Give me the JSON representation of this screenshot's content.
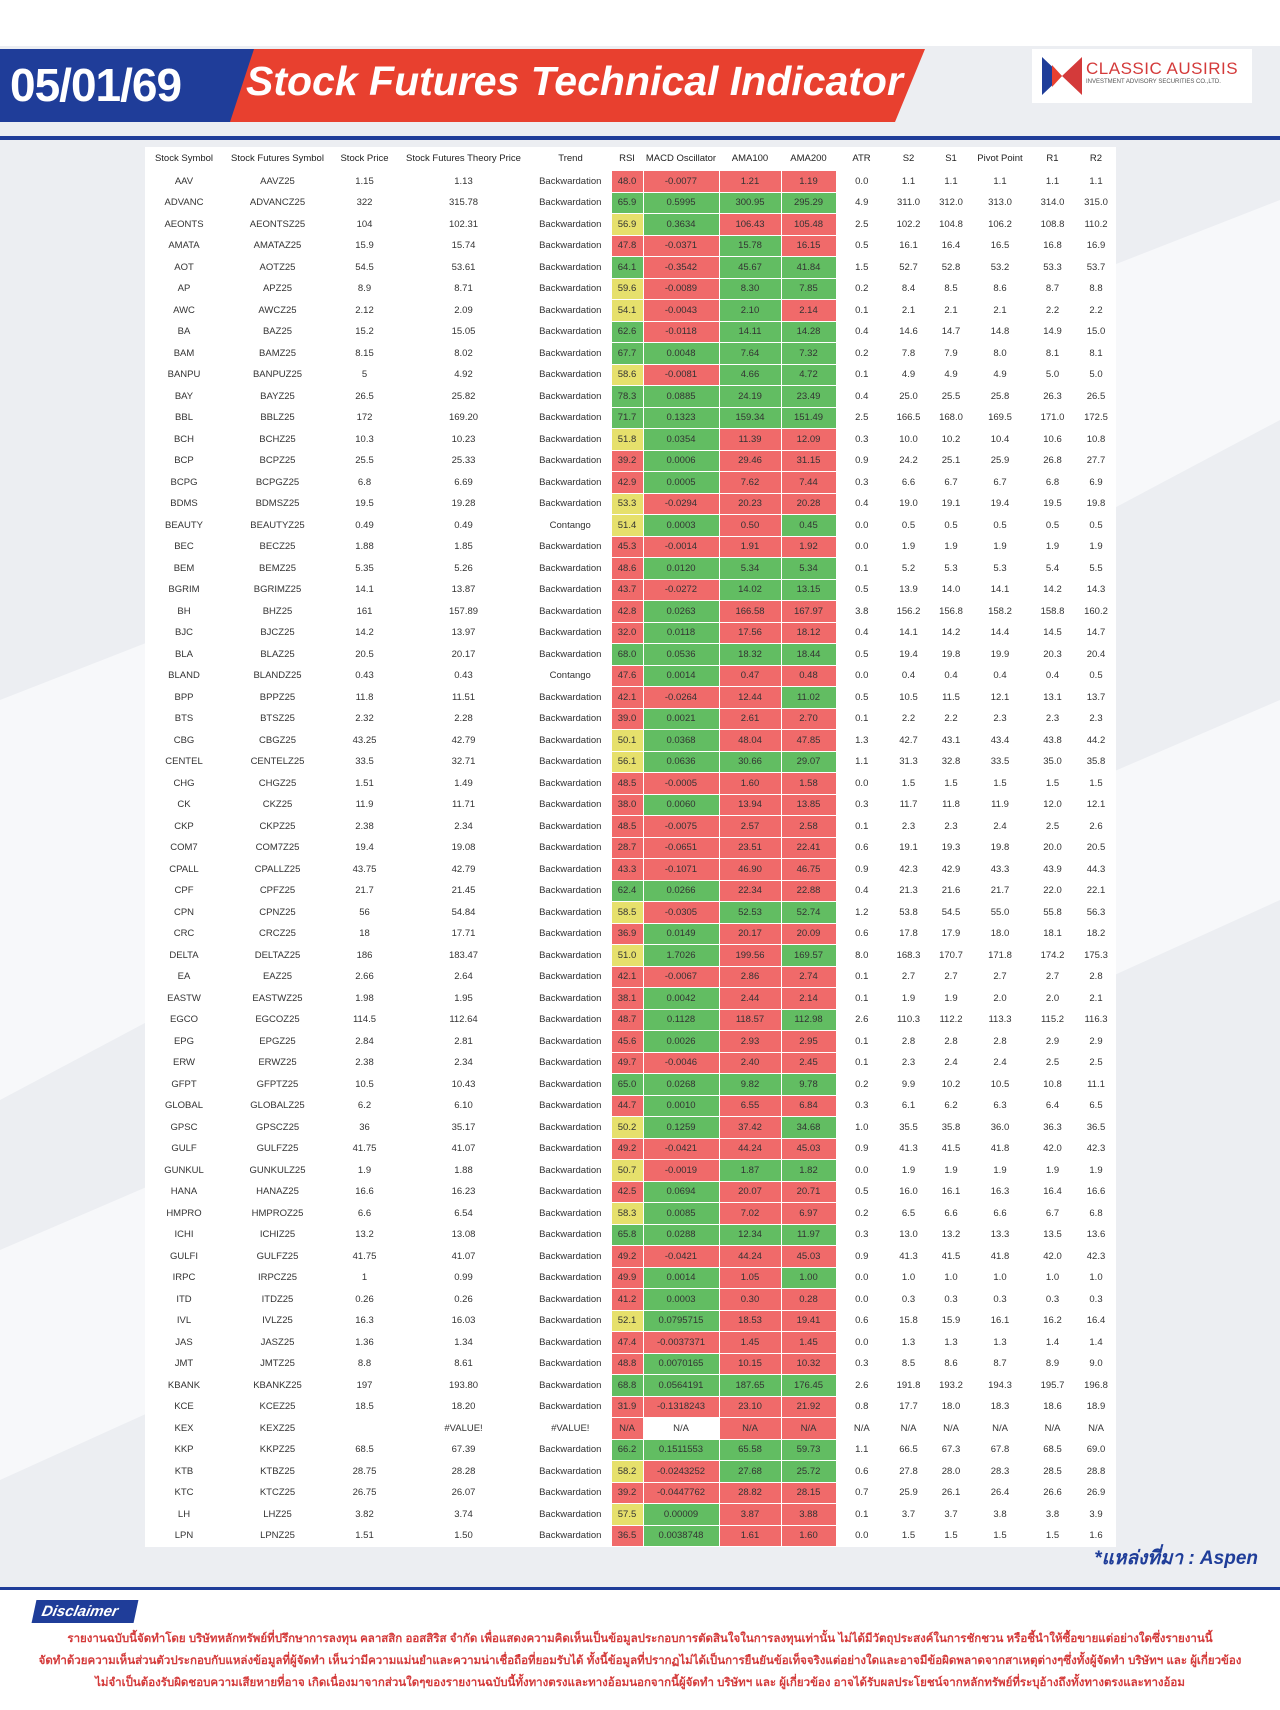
{
  "header": {
    "date": "05/01/69",
    "title": "Stock Futures Technical Indicator"
  },
  "logo": {
    "name": "CLASSIC AUSIRIS",
    "subtitle": "INVESTMENT ADVISORY SECURITIES CO.,LTD."
  },
  "table": {
    "columns": [
      "Stock Symbol",
      "Stock Futures Symbol",
      "Stock Price",
      "Stock Futures Theory Price",
      "Trend",
      "RSI",
      "MACD Oscillator",
      "AMA100",
      "AMA200",
      "ATR",
      "S2",
      "S1",
      "Pivot Point",
      "R1",
      "R2"
    ],
    "rows": [
      [
        "AAV",
        "AAVZ25",
        "1.15",
        "1.13",
        "Backwardation",
        "48.0",
        "-0.0077",
        "1.21",
        "1.19",
        "0.0",
        "1.1",
        "1.1",
        "1.1",
        "1.1",
        "1.1"
      ],
      [
        "ADVANC",
        "ADVANCZ25",
        "322",
        "315.78",
        "Backwardation",
        "65.9",
        "0.5995",
        "300.95",
        "295.29",
        "4.9",
        "311.0",
        "312.0",
        "313.0",
        "314.0",
        "315.0"
      ],
      [
        "AEONTS",
        "AEONTSZ25",
        "104",
        "102.31",
        "Backwardation",
        "56.9",
        "0.3634",
        "106.43",
        "105.48",
        "2.5",
        "102.2",
        "104.8",
        "106.2",
        "108.8",
        "110.2"
      ],
      [
        "AMATA",
        "AMATAZ25",
        "15.9",
        "15.74",
        "Backwardation",
        "47.8",
        "-0.0371",
        "15.78",
        "16.15",
        "0.5",
        "16.1",
        "16.4",
        "16.5",
        "16.8",
        "16.9"
      ],
      [
        "AOT",
        "AOTZ25",
        "54.5",
        "53.61",
        "Backwardation",
        "64.1",
        "-0.3542",
        "45.67",
        "41.84",
        "1.5",
        "52.7",
        "52.8",
        "53.2",
        "53.3",
        "53.7"
      ],
      [
        "AP",
        "APZ25",
        "8.9",
        "8.71",
        "Backwardation",
        "59.6",
        "-0.0089",
        "8.30",
        "7.85",
        "0.2",
        "8.4",
        "8.5",
        "8.6",
        "8.7",
        "8.8"
      ],
      [
        "AWC",
        "AWCZ25",
        "2.12",
        "2.09",
        "Backwardation",
        "54.1",
        "-0.0043",
        "2.10",
        "2.14",
        "0.1",
        "2.1",
        "2.1",
        "2.1",
        "2.2",
        "2.2"
      ],
      [
        "BA",
        "BAZ25",
        "15.2",
        "15.05",
        "Backwardation",
        "62.6",
        "-0.0118",
        "14.11",
        "14.28",
        "0.4",
        "14.6",
        "14.7",
        "14.8",
        "14.9",
        "15.0"
      ],
      [
        "BAM",
        "BAMZ25",
        "8.15",
        "8.02",
        "Backwardation",
        "67.7",
        "0.0048",
        "7.64",
        "7.32",
        "0.2",
        "7.8",
        "7.9",
        "8.0",
        "8.1",
        "8.1"
      ],
      [
        "BANPU",
        "BANPUZ25",
        "5",
        "4.92",
        "Backwardation",
        "58.6",
        "-0.0081",
        "4.66",
        "4.72",
        "0.1",
        "4.9",
        "4.9",
        "4.9",
        "5.0",
        "5.0"
      ],
      [
        "BAY",
        "BAYZ25",
        "26.5",
        "25.82",
        "Backwardation",
        "78.3",
        "0.0885",
        "24.19",
        "23.49",
        "0.4",
        "25.0",
        "25.5",
        "25.8",
        "26.3",
        "26.5"
      ],
      [
        "BBL",
        "BBLZ25",
        "172",
        "169.20",
        "Backwardation",
        "71.7",
        "0.1323",
        "159.34",
        "151.49",
        "2.5",
        "166.5",
        "168.0",
        "169.5",
        "171.0",
        "172.5"
      ],
      [
        "BCH",
        "BCHZ25",
        "10.3",
        "10.23",
        "Backwardation",
        "51.8",
        "0.0354",
        "11.39",
        "12.09",
        "0.3",
        "10.0",
        "10.2",
        "10.4",
        "10.6",
        "10.8"
      ],
      [
        "BCP",
        "BCPZ25",
        "25.5",
        "25.33",
        "Backwardation",
        "39.2",
        "0.0006",
        "29.46",
        "31.15",
        "0.9",
        "24.2",
        "25.1",
        "25.9",
        "26.8",
        "27.7"
      ],
      [
        "BCPG",
        "BCPGZ25",
        "6.8",
        "6.69",
        "Backwardation",
        "42.9",
        "0.0005",
        "7.62",
        "7.44",
        "0.3",
        "6.6",
        "6.7",
        "6.7",
        "6.8",
        "6.9"
      ],
      [
        "BDMS",
        "BDMSZ25",
        "19.5",
        "19.28",
        "Backwardation",
        "53.3",
        "-0.0294",
        "20.23",
        "20.28",
        "0.4",
        "19.0",
        "19.1",
        "19.4",
        "19.5",
        "19.8"
      ],
      [
        "BEAUTY",
        "BEAUTYZ25",
        "0.49",
        "0.49",
        "Contango",
        "51.4",
        "0.0003",
        "0.50",
        "0.45",
        "0.0",
        "0.5",
        "0.5",
        "0.5",
        "0.5",
        "0.5"
      ],
      [
        "BEC",
        "BECZ25",
        "1.88",
        "1.85",
        "Backwardation",
        "45.3",
        "-0.0014",
        "1.91",
        "1.92",
        "0.0",
        "1.9",
        "1.9",
        "1.9",
        "1.9",
        "1.9"
      ],
      [
        "BEM",
        "BEMZ25",
        "5.35",
        "5.26",
        "Backwardation",
        "48.6",
        "0.0120",
        "5.34",
        "5.34",
        "0.1",
        "5.2",
        "5.3",
        "5.3",
        "5.4",
        "5.5"
      ],
      [
        "BGRIM",
        "BGRIMZ25",
        "14.1",
        "13.87",
        "Backwardation",
        "43.7",
        "-0.0272",
        "14.02",
        "13.15",
        "0.5",
        "13.9",
        "14.0",
        "14.1",
        "14.2",
        "14.3"
      ],
      [
        "BH",
        "BHZ25",
        "161",
        "157.89",
        "Backwardation",
        "42.8",
        "0.0263",
        "166.58",
        "167.97",
        "3.8",
        "156.2",
        "156.8",
        "158.2",
        "158.8",
        "160.2"
      ],
      [
        "BJC",
        "BJCZ25",
        "14.2",
        "13.97",
        "Backwardation",
        "32.0",
        "0.0118",
        "17.56",
        "18.12",
        "0.4",
        "14.1",
        "14.2",
        "14.4",
        "14.5",
        "14.7"
      ],
      [
        "BLA",
        "BLAZ25",
        "20.5",
        "20.17",
        "Backwardation",
        "68.0",
        "0.0536",
        "18.32",
        "18.44",
        "0.5",
        "19.4",
        "19.8",
        "19.9",
        "20.3",
        "20.4"
      ],
      [
        "BLAND",
        "BLANDZ25",
        "0.43",
        "0.43",
        "Contango",
        "47.6",
        "0.0014",
        "0.47",
        "0.48",
        "0.0",
        "0.4",
        "0.4",
        "0.4",
        "0.4",
        "0.5"
      ],
      [
        "BPP",
        "BPPZ25",
        "11.8",
        "11.51",
        "Backwardation",
        "42.1",
        "-0.0264",
        "12.44",
        "11.02",
        "0.5",
        "10.5",
        "11.5",
        "12.1",
        "13.1",
        "13.7"
      ],
      [
        "BTS",
        "BTSZ25",
        "2.32",
        "2.28",
        "Backwardation",
        "39.0",
        "0.0021",
        "2.61",
        "2.70",
        "0.1",
        "2.2",
        "2.2",
        "2.3",
        "2.3",
        "2.3"
      ],
      [
        "CBG",
        "CBGZ25",
        "43.25",
        "42.79",
        "Backwardation",
        "50.1",
        "0.0368",
        "48.04",
        "47.85",
        "1.3",
        "42.7",
        "43.1",
        "43.4",
        "43.8",
        "44.2"
      ],
      [
        "CENTEL",
        "CENTELZ25",
        "33.5",
        "32.71",
        "Backwardation",
        "56.1",
        "0.0636",
        "30.66",
        "29.07",
        "1.1",
        "31.3",
        "32.8",
        "33.5",
        "35.0",
        "35.8"
      ],
      [
        "CHG",
        "CHGZ25",
        "1.51",
        "1.49",
        "Backwardation",
        "48.5",
        "-0.0005",
        "1.60",
        "1.58",
        "0.0",
        "1.5",
        "1.5",
        "1.5",
        "1.5",
        "1.5"
      ],
      [
        "CK",
        "CKZ25",
        "11.9",
        "11.71",
        "Backwardation",
        "38.0",
        "0.0060",
        "13.94",
        "13.85",
        "0.3",
        "11.7",
        "11.8",
        "11.9",
        "12.0",
        "12.1"
      ],
      [
        "CKP",
        "CKPZ25",
        "2.38",
        "2.34",
        "Backwardation",
        "48.5",
        "-0.0075",
        "2.57",
        "2.58",
        "0.1",
        "2.3",
        "2.3",
        "2.4",
        "2.5",
        "2.6"
      ],
      [
        "COM7",
        "COM7Z25",
        "19.4",
        "19.08",
        "Backwardation",
        "28.7",
        "-0.0651",
        "23.51",
        "22.41",
        "0.6",
        "19.1",
        "19.3",
        "19.8",
        "20.0",
        "20.5"
      ],
      [
        "CPALL",
        "CPALLZ25",
        "43.75",
        "42.79",
        "Backwardation",
        "43.3",
        "-0.1071",
        "46.90",
        "46.75",
        "0.9",
        "42.3",
        "42.9",
        "43.3",
        "43.9",
        "44.3"
      ],
      [
        "CPF",
        "CPFZ25",
        "21.7",
        "21.45",
        "Backwardation",
        "62.4",
        "0.0266",
        "22.34",
        "22.88",
        "0.4",
        "21.3",
        "21.6",
        "21.7",
        "22.0",
        "22.1"
      ],
      [
        "CPN",
        "CPNZ25",
        "56",
        "54.84",
        "Backwardation",
        "58.5",
        "-0.0305",
        "52.53",
        "52.74",
        "1.2",
        "53.8",
        "54.5",
        "55.0",
        "55.8",
        "56.3"
      ],
      [
        "CRC",
        "CRCZ25",
        "18",
        "17.71",
        "Backwardation",
        "36.9",
        "0.0149",
        "20.17",
        "20.09",
        "0.6",
        "17.8",
        "17.9",
        "18.0",
        "18.1",
        "18.2"
      ],
      [
        "DELTA",
        "DELTAZ25",
        "186",
        "183.47",
        "Backwardation",
        "51.0",
        "1.7026",
        "199.56",
        "169.57",
        "8.0",
        "168.3",
        "170.7",
        "171.8",
        "174.2",
        "175.3"
      ],
      [
        "EA",
        "EAZ25",
        "2.66",
        "2.64",
        "Backwardation",
        "42.1",
        "-0.0067",
        "2.86",
        "2.74",
        "0.1",
        "2.7",
        "2.7",
        "2.7",
        "2.7",
        "2.8"
      ],
      [
        "EASTW",
        "EASTWZ25",
        "1.98",
        "1.95",
        "Backwardation",
        "38.1",
        "0.0042",
        "2.44",
        "2.14",
        "0.1",
        "1.9",
        "1.9",
        "2.0",
        "2.0",
        "2.1"
      ],
      [
        "EGCO",
        "EGCOZ25",
        "114.5",
        "112.64",
        "Backwardation",
        "48.7",
        "0.1128",
        "118.57",
        "112.98",
        "2.6",
        "110.3",
        "112.2",
        "113.3",
        "115.2",
        "116.3"
      ],
      [
        "EPG",
        "EPGZ25",
        "2.84",
        "2.81",
        "Backwardation",
        "45.6",
        "0.0026",
        "2.93",
        "2.95",
        "0.1",
        "2.8",
        "2.8",
        "2.8",
        "2.9",
        "2.9"
      ],
      [
        "ERW",
        "ERWZ25",
        "2.38",
        "2.34",
        "Backwardation",
        "49.7",
        "-0.0046",
        "2.40",
        "2.45",
        "0.1",
        "2.3",
        "2.4",
        "2.4",
        "2.5",
        "2.5"
      ],
      [
        "GFPT",
        "GFPTZ25",
        "10.5",
        "10.43",
        "Backwardation",
        "65.0",
        "0.0268",
        "9.82",
        "9.78",
        "0.2",
        "9.9",
        "10.2",
        "10.5",
        "10.8",
        "11.1"
      ],
      [
        "GLOBAL",
        "GLOBALZ25",
        "6.2",
        "6.10",
        "Backwardation",
        "44.7",
        "0.0010",
        "6.55",
        "6.84",
        "0.3",
        "6.1",
        "6.2",
        "6.3",
        "6.4",
        "6.5"
      ],
      [
        "GPSC",
        "GPSCZ25",
        "36",
        "35.17",
        "Backwardation",
        "50.2",
        "0.1259",
        "37.42",
        "34.68",
        "1.0",
        "35.5",
        "35.8",
        "36.0",
        "36.3",
        "36.5"
      ],
      [
        "GULF",
        "GULFZ25",
        "41.75",
        "41.07",
        "Backwardation",
        "49.2",
        "-0.0421",
        "44.24",
        "45.03",
        "0.9",
        "41.3",
        "41.5",
        "41.8",
        "42.0",
        "42.3"
      ],
      [
        "GUNKUL",
        "GUNKULZ25",
        "1.9",
        "1.88",
        "Backwardation",
        "50.7",
        "-0.0019",
        "1.87",
        "1.82",
        "0.0",
        "1.9",
        "1.9",
        "1.9",
        "1.9",
        "1.9"
      ],
      [
        "HANA",
        "HANAZ25",
        "16.6",
        "16.23",
        "Backwardation",
        "42.5",
        "0.0694",
        "20.07",
        "20.71",
        "0.5",
        "16.0",
        "16.1",
        "16.3",
        "16.4",
        "16.6"
      ],
      [
        "HMPRO",
        "HMPROZ25",
        "6.6",
        "6.54",
        "Backwardation",
        "58.3",
        "0.0085",
        "7.02",
        "6.97",
        "0.2",
        "6.5",
        "6.6",
        "6.6",
        "6.7",
        "6.8"
      ],
      [
        "ICHI",
        "ICHIZ25",
        "13.2",
        "13.08",
        "Backwardation",
        "65.8",
        "0.0288",
        "12.34",
        "11.97",
        "0.3",
        "13.0",
        "13.2",
        "13.3",
        "13.5",
        "13.6"
      ],
      [
        "GULFI",
        "GULFZ25",
        "41.75",
        "41.07",
        "Backwardation",
        "49.2",
        "-0.0421",
        "44.24",
        "45.03",
        "0.9",
        "41.3",
        "41.5",
        "41.8",
        "42.0",
        "42.3"
      ],
      [
        "IRPC",
        "IRPCZ25",
        "1",
        "0.99",
        "Backwardation",
        "49.9",
        "0.0014",
        "1.05",
        "1.00",
        "0.0",
        "1.0",
        "1.0",
        "1.0",
        "1.0",
        "1.0"
      ],
      [
        "ITD",
        "ITDZ25",
        "0.26",
        "0.26",
        "Backwardation",
        "41.2",
        "0.0003",
        "0.30",
        "0.28",
        "0.0",
        "0.3",
        "0.3",
        "0.3",
        "0.3",
        "0.3"
      ],
      [
        "IVL",
        "IVLZ25",
        "16.3",
        "16.03",
        "Backwardation",
        "52.1",
        "0.0795715",
        "18.53",
        "19.41",
        "0.6",
        "15.8",
        "15.9",
        "16.1",
        "16.2",
        "16.4"
      ],
      [
        "JAS",
        "JASZ25",
        "1.36",
        "1.34",
        "Backwardation",
        "47.4",
        "-0.0037371",
        "1.45",
        "1.45",
        "0.0",
        "1.3",
        "1.3",
        "1.3",
        "1.4",
        "1.4"
      ],
      [
        "JMT",
        "JMTZ25",
        "8.8",
        "8.61",
        "Backwardation",
        "48.8",
        "0.0070165",
        "10.15",
        "10.32",
        "0.3",
        "8.5",
        "8.6",
        "8.7",
        "8.9",
        "9.0"
      ],
      [
        "KBANK",
        "KBANKZ25",
        "197",
        "193.80",
        "Backwardation",
        "68.8",
        "0.0564191",
        "187.65",
        "176.45",
        "2.6",
        "191.8",
        "193.2",
        "194.3",
        "195.7",
        "196.8"
      ],
      [
        "KCE",
        "KCEZ25",
        "18.5",
        "18.20",
        "Backwardation",
        "31.9",
        "-0.1318243",
        "23.10",
        "21.92",
        "0.8",
        "17.7",
        "18.0",
        "18.3",
        "18.6",
        "18.9"
      ],
      [
        "KEX",
        "KEXZ25",
        null,
        "#VALUE!",
        "#VALUE!",
        "N/A",
        "N/A",
        "N/A",
        "N/A",
        "N/A",
        "N/A",
        "N/A",
        "N/A",
        "N/A",
        "N/A"
      ],
      [
        "KKP",
        "KKPZ25",
        "68.5",
        "67.39",
        "Backwardation",
        "66.2",
        "0.1511553",
        "65.58",
        "59.73",
        "1.1",
        "66.5",
        "67.3",
        "67.8",
        "68.5",
        "69.0"
      ],
      [
        "KTB",
        "KTBZ25",
        "28.75",
        "28.28",
        "Backwardation",
        "58.2",
        "-0.0243252",
        "27.68",
        "25.72",
        "0.6",
        "27.8",
        "28.0",
        "28.3",
        "28.5",
        "28.8"
      ],
      [
        "KTC",
        "KTCZ25",
        "26.75",
        "26.07",
        "Backwardation",
        "39.2",
        "-0.0447762",
        "28.82",
        "28.15",
        "0.7",
        "25.9",
        "26.1",
        "26.4",
        "26.6",
        "26.9"
      ],
      [
        "LH",
        "LHZ25",
        "3.82",
        "3.74",
        "Backwardation",
        "57.5",
        "0.00009",
        "3.87",
        "3.88",
        "0.1",
        "3.7",
        "3.7",
        "3.8",
        "3.8",
        "3.9"
      ],
      [
        "LPN",
        "LPNZ25",
        "1.51",
        "1.50",
        "Backwardation",
        "36.5",
        "0.0038748",
        "1.61",
        "1.60",
        "0.0",
        "1.5",
        "1.5",
        "1.5",
        "1.5",
        "1.6"
      ]
    ]
  },
  "source": "*แหล่งที่มา : Aspen",
  "disclaimer": {
    "label": "Disclaimer",
    "lines": [
      "รายงานฉบับนี้จัดทำโดย บริษัทหลักทรัพย์ที่ปรึกษาการลงทุน คลาสสิก ออสสิริส จำกัด  เพื่อแสดงความคิดเห็นเป็นข้อมูลประกอบการตัดสินใจในการลงทุนเท่านั้น ไม่ได้มีวัตถุประสงค์ในการชักชวน หรือชี้นำให้ซื้อขายแต่อย่างใดซึ่งรายงานนี้",
      "จัดทำด้วยความเห็นส่วนตัวประกอบกับแหล่งข้อมูลที่ผู้จัดทำ เห็นว่ามีความแม่นยำและความน่าเชื่อถือที่ยอมรับได้ ทั้งนี้ข้อมูลที่ปรากฏไม่ได้เป็นการยืนยันข้อเท็จจริงแต่อย่างใดและอาจมีข้อผิดพลาดจากสาเหตุต่างๆซึ่งทั้งผู้จัดทำ  บริษัทฯ  และ  ผู้เกี่ยวข้อง",
      "ไม่จำเป็นต้องรับผิดชอบความเสียหายที่อาจ เกิดเนื่องมาจากส่วนใดๆของรายงานฉบับนี้ทั้งทางตรงและทางอ้อมนอกจากนี้ผู้จัดทำ บริษัทฯ และ ผู้เกี่ยวข้อง  อาจได้รับผลประโยชน์จากหลักทรัพย์ที่ระบุอ้างถึงทั้งทางตรงและทางอ้อม"
    ]
  }
}
